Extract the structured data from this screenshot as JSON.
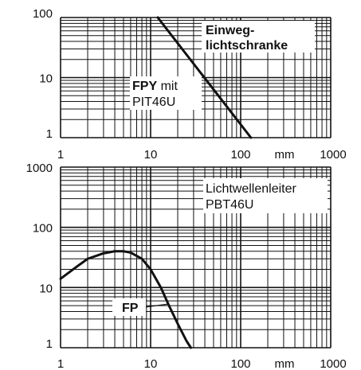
{
  "chart_data": [
    {
      "type": "line",
      "xscale": "log",
      "yscale": "log",
      "xlim": [
        1,
        1000
      ],
      "ylim": [
        1,
        100
      ],
      "grid": true,
      "xticks": [
        "1",
        "10",
        "100",
        "1000"
      ],
      "yticks": [
        "1",
        "10",
        "100"
      ],
      "xunit": "mm",
      "series": [
        {
          "points": [
            [
              12,
              100
            ],
            [
              130,
              1
            ]
          ]
        }
      ],
      "annotations": {
        "title_line1": "Einweg-",
        "title_line2": "lichtschranke",
        "label_bold": "FPY",
        "label_suffix": " mit",
        "label_line2": "PIT46U"
      }
    },
    {
      "type": "line",
      "xscale": "log",
      "yscale": "log",
      "xlim": [
        1,
        1000
      ],
      "ylim": [
        1,
        1000
      ],
      "grid": true,
      "xticks": [
        "1",
        "10",
        "100",
        "1000"
      ],
      "yticks": [
        "1",
        "10",
        "100",
        "1000"
      ],
      "xunit": "mm",
      "series": [
        {
          "name": "FP",
          "points": [
            [
              1,
              14
            ],
            [
              1.5,
              22
            ],
            [
              2,
              30
            ],
            [
              3,
              37
            ],
            [
              4,
              40
            ],
            [
              5,
              40
            ],
            [
              6,
              38
            ],
            [
              8,
              30
            ],
            [
              10,
              20
            ],
            [
              13,
              10
            ],
            [
              16,
              5
            ],
            [
              20,
              2.5
            ],
            [
              25,
              1.3
            ],
            [
              28,
              1
            ]
          ]
        }
      ],
      "annotations": {
        "title_line1": "Lichtwellenleiter",
        "title_line2": "PBT46U",
        "label_bold": "FP"
      }
    }
  ]
}
